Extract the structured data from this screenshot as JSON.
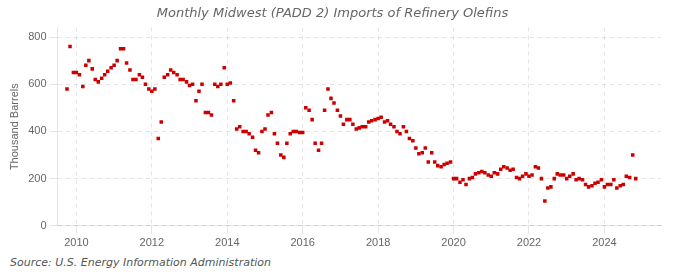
{
  "chart_data": {
    "type": "scatter",
    "title": "Monthly Midwest (PADD 2) Imports of Refinery Olefins",
    "ylabel": "Thousand Barrels",
    "annotations": [
      "Source: U.S. Energy Information Administration"
    ],
    "color": "#cc0000",
    "marker": "square",
    "grid": true,
    "xlim": [
      2009.5,
      2025.5
    ],
    "xticks": [
      2010,
      2012,
      2014,
      2016,
      2018,
      2020,
      2022,
      2024
    ],
    "ylim": [
      0,
      840
    ],
    "yticks": [
      0,
      200,
      400,
      600,
      800
    ],
    "x": [
      2009.75,
      2009.83,
      2009.92,
      2010.0,
      2010.08,
      2010.17,
      2010.25,
      2010.33,
      2010.42,
      2010.5,
      2010.58,
      2010.67,
      2010.75,
      2010.83,
      2010.92,
      2011.0,
      2011.08,
      2011.17,
      2011.25,
      2011.33,
      2011.42,
      2011.5,
      2011.58,
      2011.67,
      2011.75,
      2011.83,
      2011.92,
      2012.0,
      2012.08,
      2012.17,
      2012.25,
      2012.33,
      2012.42,
      2012.5,
      2012.58,
      2012.67,
      2012.75,
      2012.83,
      2012.92,
      2013.0,
      2013.08,
      2013.17,
      2013.25,
      2013.33,
      2013.42,
      2013.5,
      2013.58,
      2013.67,
      2013.75,
      2013.83,
      2013.92,
      2014.0,
      2014.08,
      2014.17,
      2014.25,
      2014.33,
      2014.42,
      2014.5,
      2014.58,
      2014.67,
      2014.75,
      2014.83,
      2014.92,
      2015.0,
      2015.08,
      2015.17,
      2015.25,
      2015.33,
      2015.42,
      2015.5,
      2015.58,
      2015.67,
      2015.75,
      2015.83,
      2015.92,
      2016.0,
      2016.08,
      2016.17,
      2016.25,
      2016.33,
      2016.42,
      2016.5,
      2016.58,
      2016.67,
      2016.75,
      2016.83,
      2016.92,
      2017.0,
      2017.08,
      2017.17,
      2017.25,
      2017.33,
      2017.42,
      2017.5,
      2017.58,
      2017.67,
      2017.75,
      2017.83,
      2017.92,
      2018.0,
      2018.08,
      2018.17,
      2018.25,
      2018.33,
      2018.42,
      2018.5,
      2018.58,
      2018.67,
      2018.75,
      2018.83,
      2018.92,
      2019.0,
      2019.08,
      2019.17,
      2019.25,
      2019.33,
      2019.42,
      2019.5,
      2019.58,
      2019.67,
      2019.75,
      2019.83,
      2019.92,
      2020.0,
      2020.08,
      2020.17,
      2020.25,
      2020.33,
      2020.42,
      2020.5,
      2020.58,
      2020.67,
      2020.75,
      2020.83,
      2020.92,
      2021.0,
      2021.08,
      2021.17,
      2021.25,
      2021.33,
      2021.42,
      2021.5,
      2021.58,
      2021.67,
      2021.75,
      2021.83,
      2021.92,
      2022.0,
      2022.08,
      2022.17,
      2022.25,
      2022.33,
      2022.42,
      2022.5,
      2022.58,
      2022.67,
      2022.75,
      2022.83,
      2022.92,
      2023.0,
      2023.08,
      2023.17,
      2023.25,
      2023.33,
      2023.42,
      2023.5,
      2023.58,
      2023.67,
      2023.75,
      2023.83,
      2023.92,
      2024.0,
      2024.08,
      2024.17,
      2024.25,
      2024.33,
      2024.42,
      2024.5,
      2024.58,
      2024.67,
      2024.75,
      2024.83
    ],
    "values": [
      580,
      760,
      650,
      650,
      640,
      590,
      680,
      700,
      665,
      620,
      610,
      625,
      640,
      655,
      670,
      680,
      700,
      750,
      750,
      690,
      660,
      620,
      620,
      640,
      630,
      600,
      580,
      570,
      580,
      370,
      440,
      630,
      640,
      660,
      650,
      640,
      620,
      620,
      610,
      595,
      600,
      530,
      570,
      600,
      480,
      480,
      470,
      600,
      590,
      600,
      670,
      600,
      605,
      530,
      410,
      420,
      400,
      400,
      390,
      375,
      320,
      310,
      400,
      410,
      470,
      480,
      390,
      350,
      300,
      290,
      350,
      390,
      400,
      400,
      395,
      395,
      500,
      490,
      450,
      350,
      320,
      350,
      490,
      580,
      540,
      520,
      490,
      465,
      430,
      450,
      450,
      430,
      410,
      415,
      420,
      420,
      440,
      445,
      450,
      455,
      460,
      440,
      445,
      430,
      420,
      400,
      390,
      420,
      400,
      370,
      360,
      330,
      305,
      310,
      330,
      270,
      310,
      270,
      255,
      250,
      260,
      265,
      270,
      200,
      200,
      185,
      195,
      175,
      200,
      205,
      220,
      225,
      230,
      225,
      215,
      210,
      225,
      220,
      240,
      250,
      245,
      235,
      240,
      205,
      200,
      210,
      220,
      210,
      215,
      250,
      245,
      200,
      105,
      160,
      165,
      200,
      220,
      215,
      215,
      200,
      210,
      220,
      195,
      200,
      195,
      175,
      165,
      170,
      180,
      185,
      195,
      165,
      175,
      175,
      195,
      160,
      170,
      175,
      210,
      205,
      300,
      200
    ]
  }
}
